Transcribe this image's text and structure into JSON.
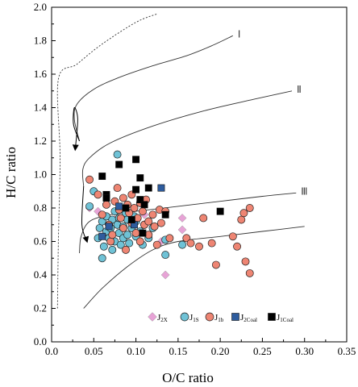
{
  "chart_data": {
    "type": "scatter",
    "xlabel": "O/C ratio",
    "ylabel": "H/C ratio",
    "xlim": [
      0,
      0.35
    ],
    "ylim": [
      0,
      2.0
    ],
    "x_ticks": [
      "0.0",
      "0.05",
      "0.10",
      "0.15",
      "0.20",
      "0.25",
      "0.30",
      "0.35"
    ],
    "y_ticks": [
      "0.0",
      "0.2",
      "0.4",
      "0.6",
      "0.8",
      "1.0",
      "1.2",
      "1.4",
      "1.6",
      "1.8",
      "2.0"
    ],
    "grid": false,
    "legend_position": "bottom-right",
    "curves": [
      {
        "label": "Ⅰ",
        "style": "solid",
        "points": [
          [
            0.033,
            1.2
          ],
          [
            0.027,
            1.33
          ],
          [
            0.03,
            1.42
          ],
          [
            0.05,
            1.51
          ],
          [
            0.08,
            1.58
          ],
          [
            0.12,
            1.65
          ],
          [
            0.16,
            1.71
          ],
          [
            0.19,
            1.77
          ],
          [
            0.215,
            1.83
          ]
        ]
      },
      {
        "label": "Ⅱ",
        "style": "solid",
        "points": [
          [
            0.038,
            0.93
          ],
          [
            0.037,
            1.03
          ],
          [
            0.045,
            1.1
          ],
          [
            0.07,
            1.19
          ],
          [
            0.12,
            1.29
          ],
          [
            0.18,
            1.38
          ],
          [
            0.24,
            1.45
          ],
          [
            0.285,
            1.5
          ]
        ]
      },
      {
        "label": "Ⅲ",
        "style": "solid",
        "points": [
          [
            0.033,
            0.53
          ],
          [
            0.035,
            0.63
          ],
          [
            0.045,
            0.72
          ],
          [
            0.07,
            0.76
          ],
          [
            0.1,
            0.78
          ],
          [
            0.15,
            0.81
          ],
          [
            0.2,
            0.84
          ],
          [
            0.25,
            0.87
          ],
          [
            0.29,
            0.89
          ]
        ]
      },
      {
        "label": "",
        "style": "solid",
        "points": [
          [
            0.038,
            0.2
          ],
          [
            0.06,
            0.32
          ],
          [
            0.09,
            0.45
          ],
          [
            0.12,
            0.55
          ],
          [
            0.15,
            0.6
          ],
          [
            0.2,
            0.63
          ],
          [
            0.25,
            0.66
          ],
          [
            0.3,
            0.69
          ]
        ]
      },
      {
        "label": "",
        "style": "dashed",
        "points": [
          [
            0.007,
            0.2
          ],
          [
            0.008,
            0.6
          ],
          [
            0.01,
            1.1
          ],
          [
            0.008,
            1.57
          ],
          [
            0.03,
            1.66
          ],
          [
            0.06,
            1.78
          ],
          [
            0.1,
            1.91
          ],
          [
            0.125,
            1.96
          ]
        ]
      }
    ],
    "arrows": [
      {
        "style": "solid",
        "points": [
          [
            0.033,
            1.2
          ],
          [
            0.026,
            1.3
          ],
          [
            0.027,
            1.4
          ],
          [
            0.031,
            1.33
          ],
          [
            0.028,
            1.15
          ]
        ]
      },
      {
        "style": "solid",
        "points": [
          [
            0.038,
            0.93
          ],
          [
            0.036,
            0.7
          ],
          [
            0.042,
            0.6
          ]
        ]
      }
    ],
    "series": [
      {
        "name": "J2X",
        "marker": "diamond",
        "color": "#e7a3d6",
        "points": [
          [
            0.045,
            0.8
          ],
          [
            0.055,
            0.78
          ],
          [
            0.075,
            0.73
          ],
          [
            0.11,
            0.76
          ],
          [
            0.13,
            0.6
          ],
          [
            0.135,
            0.4
          ],
          [
            0.155,
            0.74
          ],
          [
            0.155,
            0.67
          ]
        ]
      },
      {
        "name": "J1S",
        "marker": "circle",
        "color": "#6fc2d6",
        "points": [
          [
            0.045,
            0.81
          ],
          [
            0.05,
            0.9
          ],
          [
            0.055,
            0.62
          ],
          [
            0.057,
            0.68
          ],
          [
            0.06,
            0.5
          ],
          [
            0.06,
            0.72
          ],
          [
            0.062,
            0.57
          ],
          [
            0.065,
            0.66
          ],
          [
            0.065,
            0.75
          ],
          [
            0.068,
            0.62
          ],
          [
            0.07,
            0.68
          ],
          [
            0.072,
            0.73
          ],
          [
            0.072,
            0.55
          ],
          [
            0.075,
            0.78
          ],
          [
            0.075,
            0.6
          ],
          [
            0.078,
            1.12
          ],
          [
            0.078,
            0.7
          ],
          [
            0.08,
            0.65
          ],
          [
            0.08,
            0.74
          ],
          [
            0.082,
            0.58
          ],
          [
            0.085,
            0.62
          ],
          [
            0.085,
            0.69
          ],
          [
            0.088,
            0.77
          ],
          [
            0.09,
            0.64
          ],
          [
            0.09,
            0.73
          ],
          [
            0.092,
            0.59
          ],
          [
            0.095,
            0.68
          ],
          [
            0.098,
            0.75
          ],
          [
            0.1,
            0.63
          ],
          [
            0.1,
            0.72
          ],
          [
            0.105,
            0.66
          ],
          [
            0.108,
            0.58
          ],
          [
            0.11,
            0.7
          ],
          [
            0.115,
            0.62
          ],
          [
            0.12,
            0.68
          ],
          [
            0.135,
            0.61
          ],
          [
            0.135,
            0.52
          ],
          [
            0.155,
            0.58
          ]
        ]
      },
      {
        "name": "J1b",
        "marker": "circle",
        "color": "#ee8573",
        "points": [
          [
            0.045,
            0.97
          ],
          [
            0.055,
            0.88
          ],
          [
            0.06,
            0.76
          ],
          [
            0.065,
            0.82
          ],
          [
            0.068,
            0.7
          ],
          [
            0.07,
            0.6
          ],
          [
            0.072,
            0.64
          ],
          [
            0.075,
            0.84
          ],
          [
            0.078,
            0.92
          ],
          [
            0.08,
            0.79
          ],
          [
            0.082,
            0.74
          ],
          [
            0.085,
            0.86
          ],
          [
            0.085,
            0.68
          ],
          [
            0.088,
            0.55
          ],
          [
            0.09,
            0.82
          ],
          [
            0.092,
            0.77
          ],
          [
            0.095,
            0.88
          ],
          [
            0.095,
            0.71
          ],
          [
            0.098,
            0.8
          ],
          [
            0.1,
            0.65
          ],
          [
            0.102,
            0.74
          ],
          [
            0.105,
            0.83
          ],
          [
            0.105,
            0.6
          ],
          [
            0.108,
            0.78
          ],
          [
            0.11,
            0.7
          ],
          [
            0.112,
            0.85
          ],
          [
            0.115,
            0.72
          ],
          [
            0.115,
            0.64
          ],
          [
            0.12,
            0.76
          ],
          [
            0.122,
            0.69
          ],
          [
            0.125,
            0.58
          ],
          [
            0.128,
            0.79
          ],
          [
            0.13,
            0.71
          ],
          [
            0.135,
            0.78
          ],
          [
            0.14,
            0.62
          ],
          [
            0.16,
            0.62
          ],
          [
            0.165,
            0.59
          ],
          [
            0.175,
            0.57
          ],
          [
            0.18,
            0.74
          ],
          [
            0.19,
            0.59
          ],
          [
            0.195,
            0.46
          ],
          [
            0.215,
            0.63
          ],
          [
            0.22,
            0.57
          ],
          [
            0.225,
            0.73
          ],
          [
            0.228,
            0.77
          ],
          [
            0.23,
            0.48
          ],
          [
            0.235,
            0.8
          ],
          [
            0.235,
            0.41
          ]
        ]
      },
      {
        "name": "J2Coal",
        "marker": "square",
        "color": "#2e5c9e",
        "points": [
          [
            0.06,
            0.63
          ],
          [
            0.068,
            0.69
          ],
          [
            0.08,
            0.81
          ],
          [
            0.098,
            0.7
          ],
          [
            0.13,
            0.92
          ]
        ]
      },
      {
        "name": "J1Coal",
        "marker": "square",
        "color": "#000000",
        "points": [
          [
            0.06,
            0.99
          ],
          [
            0.065,
            0.88
          ],
          [
            0.065,
            0.86
          ],
          [
            0.08,
            1.06
          ],
          [
            0.088,
            0.8
          ],
          [
            0.095,
            0.73
          ],
          [
            0.1,
            0.91
          ],
          [
            0.1,
            1.09
          ],
          [
            0.105,
            0.98
          ],
          [
            0.105,
            0.85
          ],
          [
            0.108,
            0.65
          ],
          [
            0.11,
            0.82
          ],
          [
            0.115,
            0.92
          ],
          [
            0.135,
            0.76
          ],
          [
            0.2,
            0.78
          ]
        ]
      }
    ]
  },
  "legend": [
    {
      "base": "J",
      "sub": "2X",
      "marker": "diamond",
      "color": "#e7a3d6"
    },
    {
      "base": "J",
      "sub": "1S",
      "marker": "circle",
      "color": "#6fc2d6"
    },
    {
      "base": "J",
      "sub": "1b",
      "marker": "circle",
      "color": "#ee8573"
    },
    {
      "base": "J",
      "sub": "2Coal",
      "marker": "square",
      "color": "#2e5c9e"
    },
    {
      "base": "J",
      "sub": "1Coal",
      "marker": "square",
      "color": "#000000"
    }
  ]
}
